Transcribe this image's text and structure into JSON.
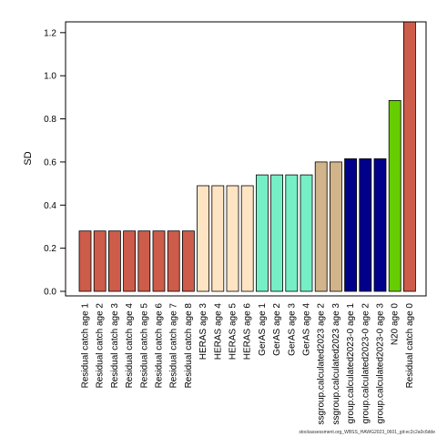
{
  "chart_data": {
    "type": "bar",
    "xlabel": "",
    "ylabel": "SD",
    "ylim": [
      0,
      1.25
    ],
    "yticks": [
      0.0,
      0.2,
      0.4,
      0.6,
      0.8,
      1.0,
      1.2
    ],
    "ytick_labels": [
      "0.0",
      "0.2",
      "0.4",
      "0.6",
      "0.8",
      "1.0",
      "1.2"
    ],
    "grid": false,
    "categories": [
      "Residual catch age 1",
      "Residual catch age 2",
      "Residual catch age 3",
      "Residual catch age 4",
      "Residual catch age 5",
      "Residual catch age 6",
      "Residual catch age 7",
      "Residual catch age 8",
      "HERAS age 3",
      "HERAS age 4",
      "HERAS age 5",
      "HERAS age 6",
      "GerAS age 1",
      "GerAS age 2",
      "GerAS age 3",
      "GerAS age 4",
      "ssgroup.calculated2023 age 2",
      "ssgroup.calculated2023 age 3",
      "group.calculated2023-0 age 1",
      "group.calculated2023-0 age 2",
      "group.calculated2023-0 age 3",
      "N20 age 0",
      "Residual catch age 0"
    ],
    "values": [
      0.28,
      0.28,
      0.28,
      0.28,
      0.28,
      0.28,
      0.28,
      0.28,
      0.49,
      0.49,
      0.49,
      0.49,
      0.54,
      0.54,
      0.54,
      0.54,
      0.6,
      0.6,
      0.615,
      0.615,
      0.615,
      0.885,
      1.25
    ],
    "colors": [
      "#CD5C4A",
      "#CD5C4A",
      "#CD5C4A",
      "#CD5C4A",
      "#CD5C4A",
      "#CD5C4A",
      "#CD5C4A",
      "#CD5C4A",
      "#FFE4C4",
      "#FFE4C4",
      "#FFE4C4",
      "#FFE4C4",
      "#76EEC6",
      "#76EEC6",
      "#76EEC6",
      "#76EEC6",
      "#D2B48C",
      "#D2B48C",
      "#00008B",
      "#00008B",
      "#00008B",
      "#66CD00",
      "#CD5C4A"
    ]
  },
  "footer_text": "stockassessment.org_WBSS_HAWG2023_0601_git:ec2c2a0c6dde"
}
